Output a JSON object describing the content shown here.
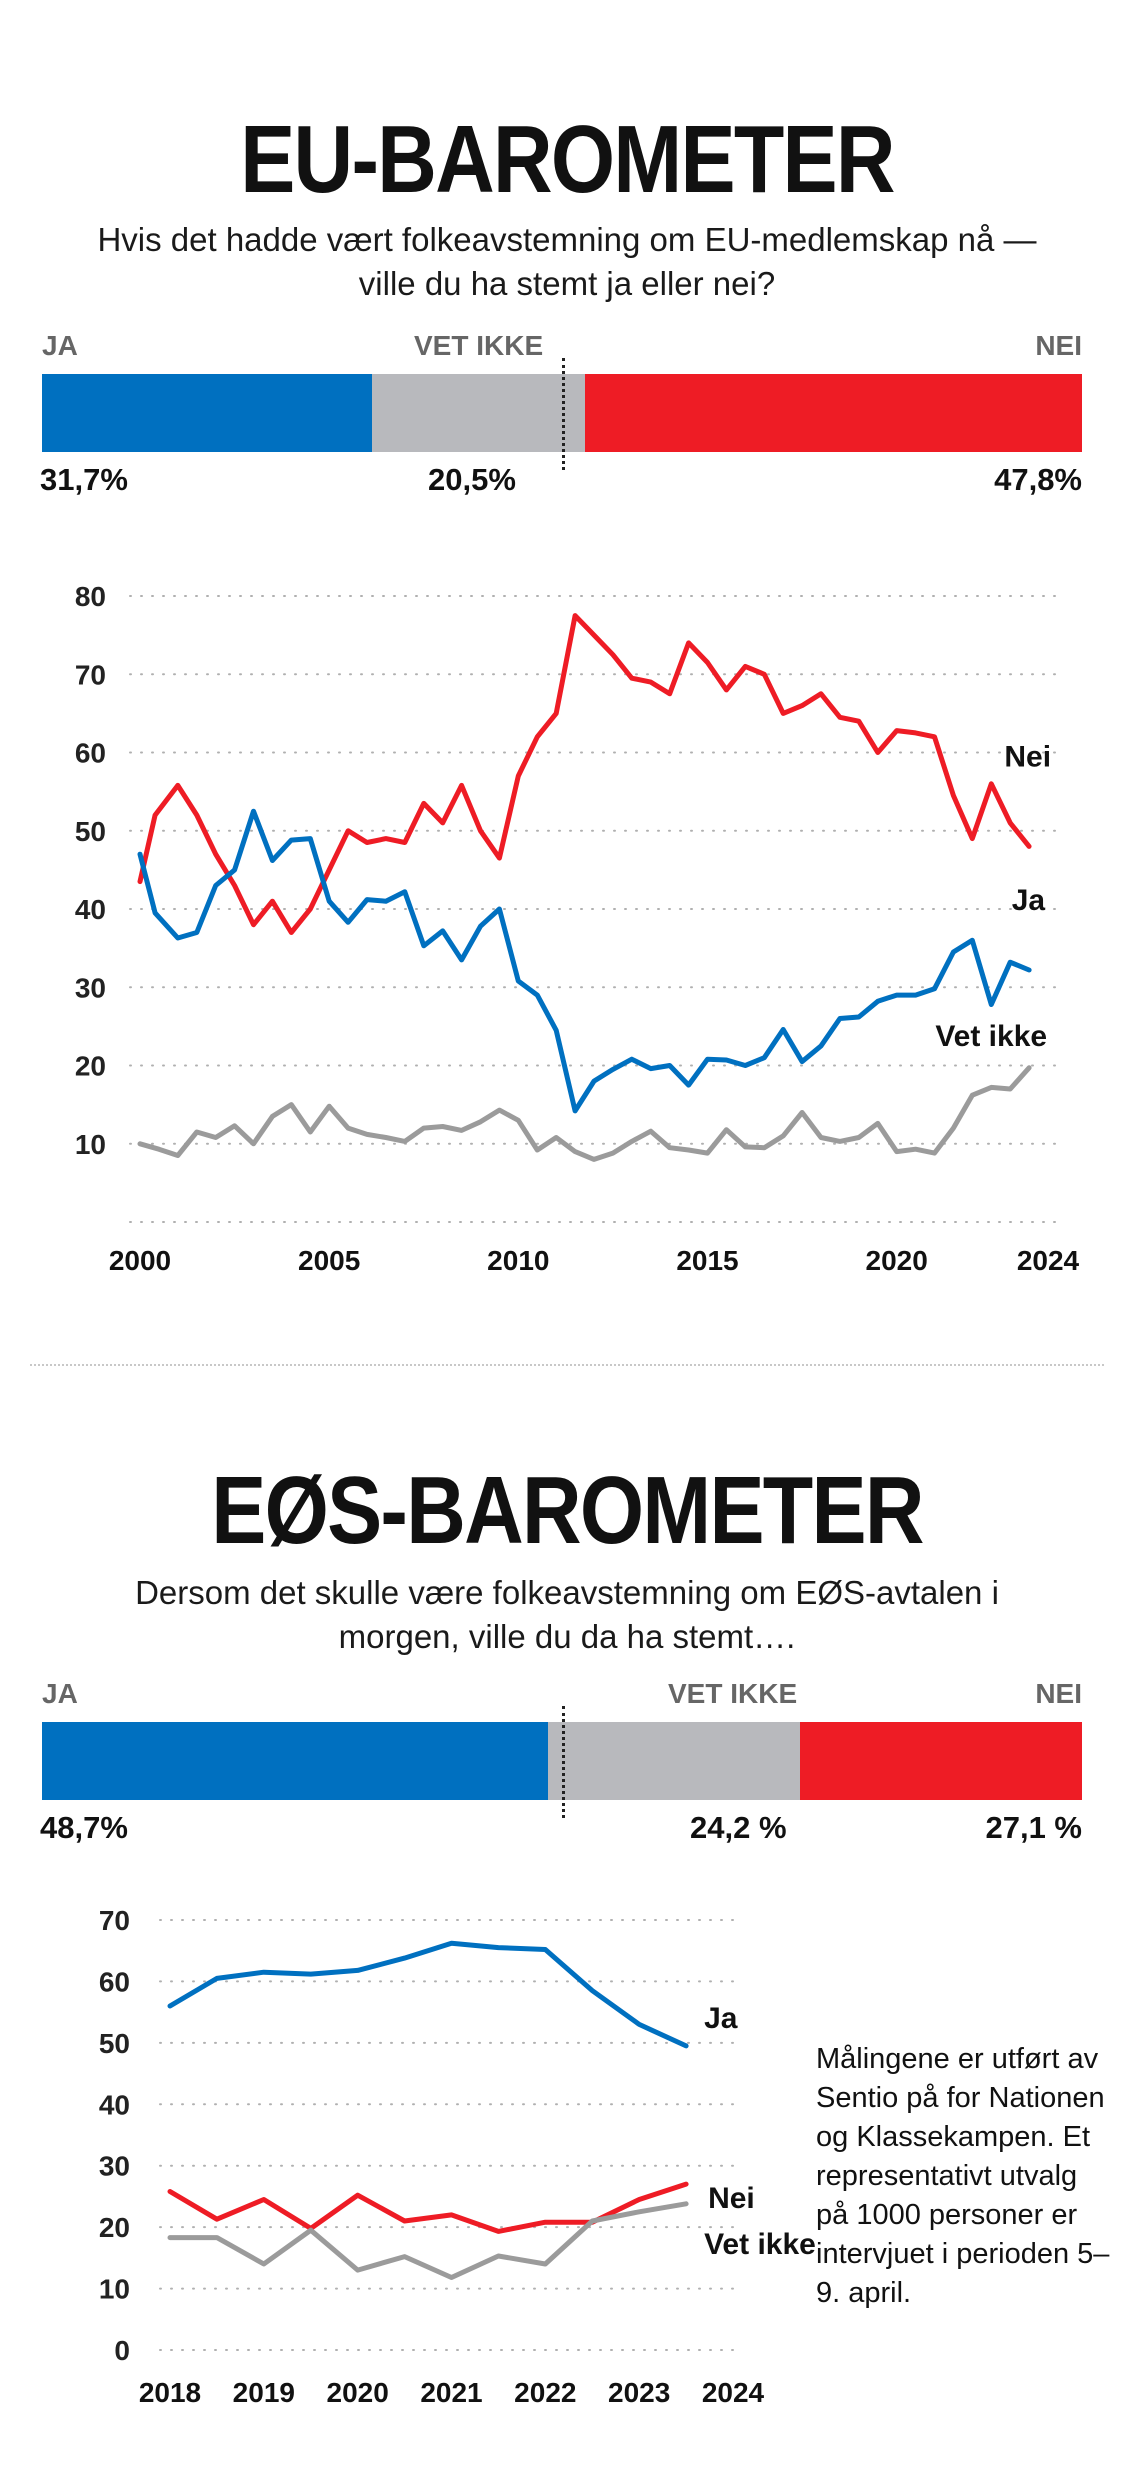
{
  "colors": {
    "ja": "#0070c0",
    "vet_ikke": "#b8b9bd",
    "nei": "#ee1c25",
    "grid": "#b0b0b0"
  },
  "eu": {
    "title": "EU-BAROMETER",
    "subtitle": "Hvis det hadde vært folkeavstemning om EU-medlemskap nå — ville du ha stemt ja eller nei?",
    "labels": {
      "ja": "JA",
      "vet_ikke": "VET IKKE",
      "nei": "NEI"
    },
    "shares": {
      "ja": 31.7,
      "vet_ikke": 20.5,
      "nei": 47.8
    },
    "percent_text": {
      "ja": "31,7%",
      "vet_ikke": "20,5%",
      "nei": "47,8%"
    }
  },
  "eos": {
    "title": "EØS-BAROMETER",
    "subtitle": "Dersom det skulle være folkeavstemning om EØS-avtalen i morgen, ville du da ha stemt….",
    "labels": {
      "ja": "JA",
      "vet_ikke": "VET IKKE",
      "nei": "NEI"
    },
    "shares": {
      "ja": 48.7,
      "vet_ikke": 24.2,
      "nei": 27.1
    },
    "percent_text": {
      "ja": "48,7%",
      "vet_ikke": "24,2 %",
      "nei": "27,1 %"
    }
  },
  "note": "Målingene er utført av Sentio på for Nationen og Klassekampen. Et representativt utvalg på 1000 personer er intervjuet i perioden 5–9. april.",
  "chart_data": [
    {
      "type": "line",
      "xlim": [
        2000,
        2024
      ],
      "ylim": [
        0,
        80
      ],
      "y_ticks": [
        10,
        20,
        30,
        40,
        50,
        60,
        70,
        80
      ],
      "x_ticks": [
        2000,
        2005,
        2010,
        2015,
        2020,
        2024
      ],
      "grid": true,
      "series": [
        {
          "name": "Nei",
          "color": "#ee1c25",
          "points": [
            [
              2000,
              43.5
            ],
            [
              2000.4,
              52
            ],
            [
              2001,
              55.8
            ],
            [
              2001.5,
              52
            ],
            [
              2002,
              47
            ],
            [
              2002.5,
              43
            ],
            [
              2003,
              38
            ],
            [
              2003.5,
              41
            ],
            [
              2004,
              37
            ],
            [
              2004.5,
              40
            ],
            [
              2005,
              45
            ],
            [
              2005.5,
              50
            ],
            [
              2006,
              48.5
            ],
            [
              2006.5,
              49
            ],
            [
              2007,
              48.5
            ],
            [
              2007.5,
              53.5
            ],
            [
              2008,
              51
            ],
            [
              2008.5,
              55.8
            ],
            [
              2009,
              50
            ],
            [
              2009.5,
              46.5
            ],
            [
              2010,
              57
            ],
            [
              2010.5,
              62
            ],
            [
              2011,
              65
            ],
            [
              2011.5,
              77.5
            ],
            [
              2012,
              75
            ],
            [
              2012.5,
              72.5
            ],
            [
              2013,
              69.5
            ],
            [
              2013.5,
              69
            ],
            [
              2014,
              67.5
            ],
            [
              2014.5,
              74
            ],
            [
              2015,
              71.5
            ],
            [
              2015.5,
              68
            ],
            [
              2016,
              71
            ],
            [
              2016.5,
              70
            ],
            [
              2017,
              65
            ],
            [
              2017.5,
              66
            ],
            [
              2018,
              67.5
            ],
            [
              2018.5,
              64.5
            ],
            [
              2019,
              64
            ],
            [
              2019.5,
              60
            ],
            [
              2020,
              62.8
            ],
            [
              2020.5,
              62.5
            ],
            [
              2021,
              62
            ],
            [
              2021.5,
              54.5
            ],
            [
              2022,
              49
            ],
            [
              2022.5,
              56
            ],
            [
              2023,
              51
            ],
            [
              2023.5,
              48
            ]
          ]
        },
        {
          "name": "Ja",
          "color": "#0070c0",
          "points": [
            [
              2000,
              47
            ],
            [
              2000.4,
              39.5
            ],
            [
              2001,
              36.3
            ],
            [
              2001.5,
              37
            ],
            [
              2002,
              43
            ],
            [
              2002.5,
              45
            ],
            [
              2003,
              52.5
            ],
            [
              2003.5,
              46.2
            ],
            [
              2004,
              48.8
            ],
            [
              2004.5,
              49
            ],
            [
              2005,
              41
            ],
            [
              2005.5,
              38.3
            ],
            [
              2006,
              41.2
            ],
            [
              2006.5,
              41
            ],
            [
              2007,
              42.2
            ],
            [
              2007.5,
              35.3
            ],
            [
              2008,
              37.2
            ],
            [
              2008.5,
              33.5
            ],
            [
              2009,
              37.8
            ],
            [
              2009.5,
              40
            ],
            [
              2010,
              30.8
            ],
            [
              2010.5,
              29
            ],
            [
              2011,
              24.5
            ],
            [
              2011.5,
              14.2
            ],
            [
              2012,
              18
            ],
            [
              2012.5,
              19.5
            ],
            [
              2013,
              20.8
            ],
            [
              2013.5,
              19.6
            ],
            [
              2014,
              20
            ],
            [
              2014.5,
              17.5
            ],
            [
              2015,
              20.8
            ],
            [
              2015.5,
              20.7
            ],
            [
              2016,
              20
            ],
            [
              2016.5,
              21
            ],
            [
              2017,
              24.6
            ],
            [
              2017.5,
              20.5
            ],
            [
              2018,
              22.5
            ],
            [
              2018.5,
              26
            ],
            [
              2019,
              26.2
            ],
            [
              2019.5,
              28.2
            ],
            [
              2020,
              29
            ],
            [
              2020.5,
              29
            ],
            [
              2021,
              29.8
            ],
            [
              2021.5,
              34.5
            ],
            [
              2022,
              36
            ],
            [
              2022.5,
              27.8
            ],
            [
              2023,
              33.2
            ],
            [
              2023.5,
              32.2
            ]
          ]
        },
        {
          "name": "Vet ikke",
          "color": "#9b9b9b",
          "points": [
            [
              2000,
              10
            ],
            [
              2000.5,
              9.3
            ],
            [
              2001,
              8.5
            ],
            [
              2001.5,
              11.5
            ],
            [
              2002,
              10.8
            ],
            [
              2002.5,
              12.3
            ],
            [
              2003,
              10
            ],
            [
              2003.5,
              13.5
            ],
            [
              2004,
              15
            ],
            [
              2004.5,
              11.5
            ],
            [
              2005,
              14.8
            ],
            [
              2005.5,
              12
            ],
            [
              2006,
              11.2
            ],
            [
              2006.5,
              10.8
            ],
            [
              2007,
              10.3
            ],
            [
              2007.5,
              12
            ],
            [
              2008,
              12.2
            ],
            [
              2008.5,
              11.7
            ],
            [
              2009,
              12.8
            ],
            [
              2009.5,
              14.3
            ],
            [
              2010,
              13
            ],
            [
              2010.5,
              9.2
            ],
            [
              2011,
              10.8
            ],
            [
              2011.5,
              9
            ],
            [
              2012,
              8
            ],
            [
              2012.5,
              8.8
            ],
            [
              2013,
              10.3
            ],
            [
              2013.5,
              11.6
            ],
            [
              2014,
              9.5
            ],
            [
              2014.5,
              9.2
            ],
            [
              2015,
              8.8
            ],
            [
              2015.5,
              11.8
            ],
            [
              2016,
              9.6
            ],
            [
              2016.5,
              9.5
            ],
            [
              2017,
              11
            ],
            [
              2017.5,
              14
            ],
            [
              2018,
              10.8
            ],
            [
              2018.5,
              10.3
            ],
            [
              2019,
              10.8
            ],
            [
              2019.5,
              12.6
            ],
            [
              2020,
              9
            ],
            [
              2020.5,
              9.3
            ],
            [
              2021,
              8.8
            ],
            [
              2021.5,
              12
            ],
            [
              2022,
              16.2
            ],
            [
              2022.5,
              17.2
            ],
            [
              2023,
              17
            ],
            [
              2023.5,
              19.7
            ]
          ]
        }
      ]
    },
    {
      "type": "line",
      "xlim": [
        2018,
        2024
      ],
      "ylim": [
        0,
        70
      ],
      "y_ticks": [
        0,
        10,
        20,
        30,
        40,
        50,
        60,
        70
      ],
      "x_ticks": [
        2018,
        2019,
        2020,
        2021,
        2022,
        2023,
        2024
      ],
      "grid": true,
      "series": [
        {
          "name": "Ja",
          "color": "#0070c0",
          "points": [
            [
              2018,
              56
            ],
            [
              2018.5,
              60.5
            ],
            [
              2019,
              61.5
            ],
            [
              2019.5,
              61.2
            ],
            [
              2020,
              61.8
            ],
            [
              2020.5,
              63.8
            ],
            [
              2021,
              66.2
            ],
            [
              2021.5,
              65.5
            ],
            [
              2022,
              65.2
            ],
            [
              2022.5,
              58.5
            ],
            [
              2023,
              53
            ],
            [
              2023.5,
              49.5
            ]
          ]
        },
        {
          "name": "Nei",
          "color": "#ee1c25",
          "points": [
            [
              2018,
              25.8
            ],
            [
              2018.5,
              21.3
            ],
            [
              2019,
              24.5
            ],
            [
              2019.5,
              19.8
            ],
            [
              2020,
              25.2
            ],
            [
              2020.5,
              21
            ],
            [
              2021,
              22
            ],
            [
              2021.5,
              19.3
            ],
            [
              2022,
              20.8
            ],
            [
              2022.5,
              20.8
            ],
            [
              2023,
              24.5
            ],
            [
              2023.5,
              27
            ]
          ]
        },
        {
          "name": "Vet ikke",
          "color": "#9b9b9b",
          "points": [
            [
              2018,
              18.3
            ],
            [
              2018.5,
              18.3
            ],
            [
              2019,
              14
            ],
            [
              2019.5,
              19.5
            ],
            [
              2020,
              13
            ],
            [
              2020.5,
              15.2
            ],
            [
              2021,
              11.8
            ],
            [
              2021.5,
              15.3
            ],
            [
              2022,
              14
            ],
            [
              2022.5,
              21
            ],
            [
              2023,
              22.5
            ],
            [
              2023.5,
              23.8
            ]
          ]
        }
      ]
    }
  ]
}
